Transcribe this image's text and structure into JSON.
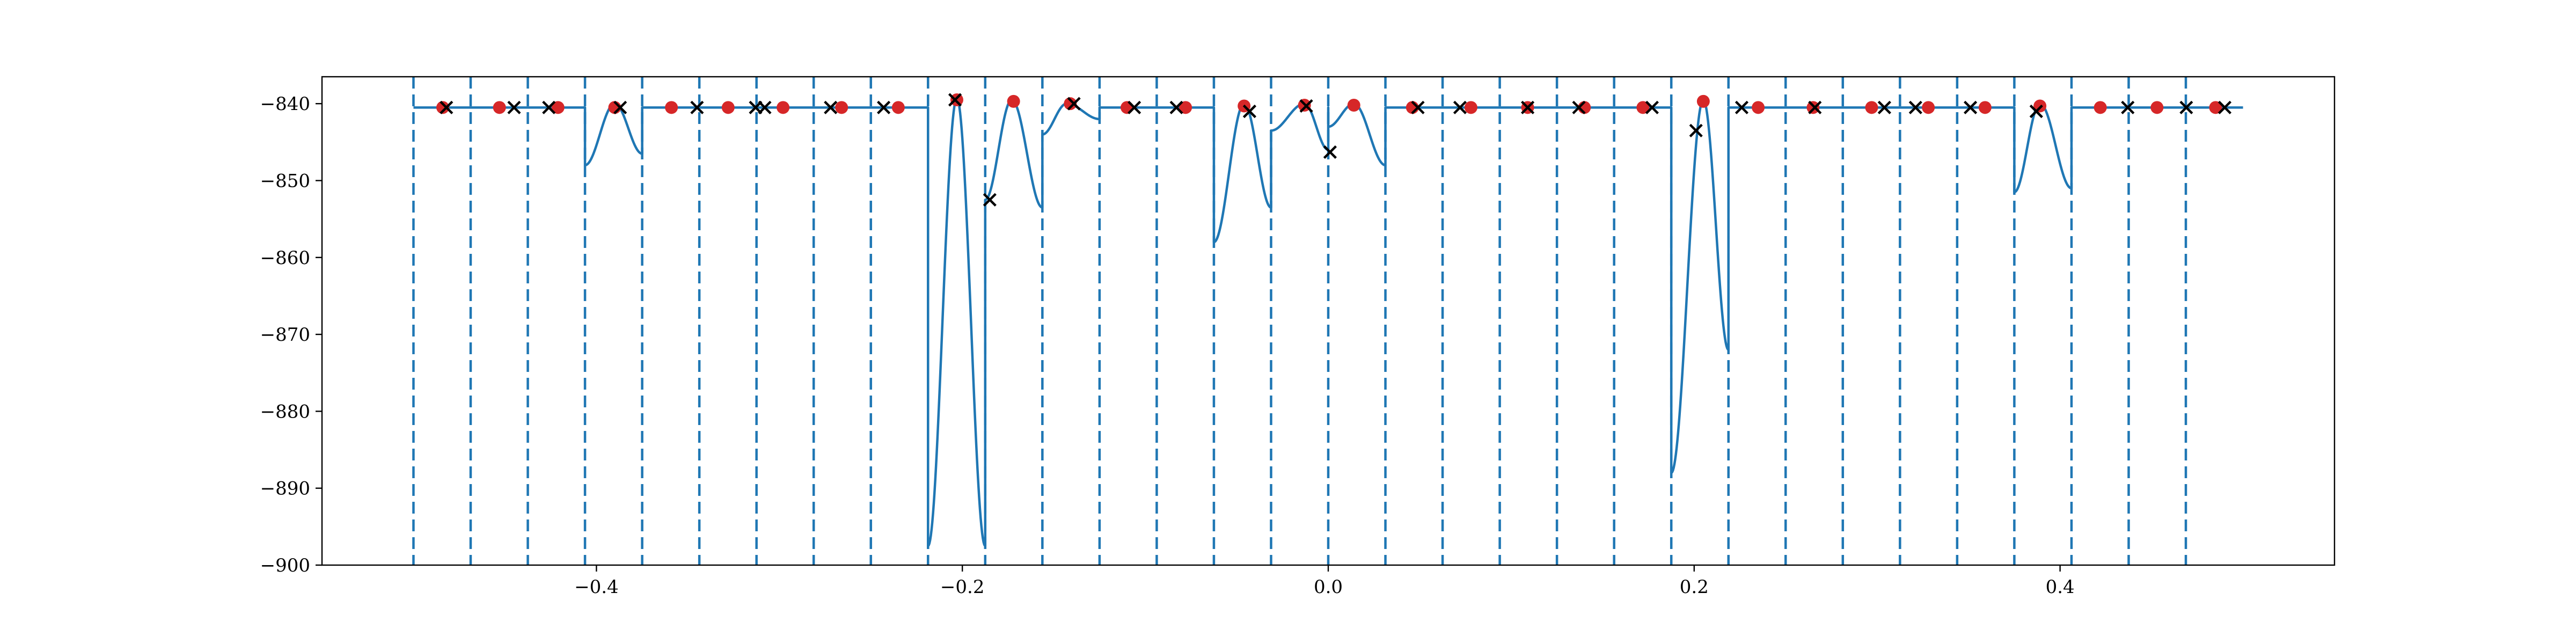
{
  "chart_data": {
    "type": "line",
    "title": "",
    "xlabel": "",
    "ylabel": "",
    "xlim": [
      -0.55,
      0.55
    ],
    "ylim": [
      -900,
      -836.5
    ],
    "xticks": [
      -0.4,
      -0.2,
      0.0,
      0.2,
      0.4
    ],
    "xtick_labels": [
      "−0.4",
      "−0.2",
      "0.0",
      "0.2",
      "0.4"
    ],
    "yticks": [
      -900,
      -890,
      -880,
      -870,
      -860,
      -850,
      -840
    ],
    "ytick_labels": [
      "−900",
      "−890",
      "−880",
      "−870",
      "−860",
      "−850",
      "−840"
    ],
    "grid": false,
    "colors": {
      "line": "#1f77b4",
      "boundaries": "#1f77b4",
      "dots": "#d62728",
      "crosses": "#000000"
    },
    "boundaries": [
      -0.5,
      -0.46875,
      -0.4375,
      -0.40625,
      -0.375,
      -0.34375,
      -0.3125,
      -0.28125,
      -0.25,
      -0.21875,
      -0.1875,
      -0.15625,
      -0.125,
      -0.09375,
      -0.0625,
      -0.03125,
      0.0,
      0.03125,
      0.0625,
      0.09375,
      0.125,
      0.15625,
      0.1875,
      0.21875,
      0.25,
      0.28125,
      0.3125,
      0.34375,
      0.375,
      0.40625,
      0.4375,
      0.46875
    ],
    "curve": {
      "x_start": -0.5,
      "x_end": 0.5,
      "baseline": -840.5,
      "wells": [
        {
          "a": -0.40625,
          "b": -0.375,
          "c": -0.39,
          "peak": -840.0,
          "left": -848.0,
          "right": -846.5
        },
        {
          "a": -0.21875,
          "b": -0.1875,
          "c": -0.203,
          "peak": -839.3,
          "left": -897.5,
          "right": -897.5
        },
        {
          "a": -0.1875,
          "b": -0.15625,
          "c": -0.173,
          "peak": -839.5,
          "left": -852.5,
          "right": -853.5
        },
        {
          "a": -0.15625,
          "b": -0.125,
          "c": -0.143,
          "peak": -840.0,
          "left": -844.0,
          "right": -842.0
        },
        {
          "a": -0.0625,
          "b": -0.03125,
          "c": -0.046,
          "peak": -840.0,
          "left": -858.0,
          "right": -853.5
        },
        {
          "a": -0.03125,
          "b": 0.0,
          "c": -0.013,
          "peak": -840.0,
          "left": -843.5,
          "right": -846.0
        },
        {
          "a": 0.0,
          "b": 0.03125,
          "c": 0.014,
          "peak": -840.0,
          "left": -843.0,
          "right": -848.0
        },
        {
          "a": 0.1875,
          "b": 0.21875,
          "c": 0.205,
          "peak": -839.5,
          "left": -888.0,
          "right": -872.0
        },
        {
          "a": 0.375,
          "b": 0.40625,
          "c": 0.389,
          "peak": -840.0,
          "left": -851.5,
          "right": -851.0
        }
      ]
    },
    "red_points": {
      "x": [
        -0.484,
        -0.453,
        -0.421,
        -0.39,
        -0.359,
        -0.328,
        -0.298,
        -0.266,
        -0.235,
        -0.203,
        -0.172,
        -0.141,
        -0.11,
        -0.078,
        -0.046,
        -0.013,
        0.014,
        0.046,
        0.078,
        0.109,
        0.14,
        0.172,
        0.205,
        0.235,
        0.265,
        0.297,
        0.328,
        0.359,
        0.389,
        0.422,
        0.453,
        0.485
      ],
      "y": [
        -840.5,
        -840.5,
        -840.5,
        -840.5,
        -840.5,
        -840.5,
        -840.5,
        -840.5,
        -840.5,
        -839.5,
        -839.7,
        -840.0,
        -840.5,
        -840.5,
        -840.3,
        -840.2,
        -840.2,
        -840.5,
        -840.5,
        -840.5,
        -840.5,
        -840.5,
        -839.7,
        -840.5,
        -840.5,
        -840.5,
        -840.5,
        -840.5,
        -840.3,
        -840.5,
        -840.5,
        -840.5
      ]
    },
    "x_points": {
      "x": [
        -0.482,
        -0.445,
        -0.426,
        -0.387,
        -0.345,
        -0.313,
        -0.308,
        -0.272,
        -0.243,
        -0.204,
        -0.185,
        -0.139,
        -0.106,
        -0.083,
        -0.043,
        -0.012,
        0.001,
        0.049,
        0.072,
        0.109,
        0.137,
        0.177,
        0.201,
        0.226,
        0.266,
        0.304,
        0.321,
        0.351,
        0.387,
        0.437,
        0.469,
        0.49
      ],
      "y": [
        -840.5,
        -840.5,
        -840.5,
        -840.5,
        -840.5,
        -840.5,
        -840.5,
        -840.5,
        -840.5,
        -839.5,
        -852.5,
        -840.0,
        -840.5,
        -840.5,
        -841.0,
        -840.3,
        -846.3,
        -840.5,
        -840.5,
        -840.5,
        -840.5,
        -840.5,
        -843.5,
        -840.5,
        -840.5,
        -840.5,
        -840.5,
        -840.5,
        -841.0,
        -840.5,
        -840.5,
        -840.5
      ]
    }
  }
}
